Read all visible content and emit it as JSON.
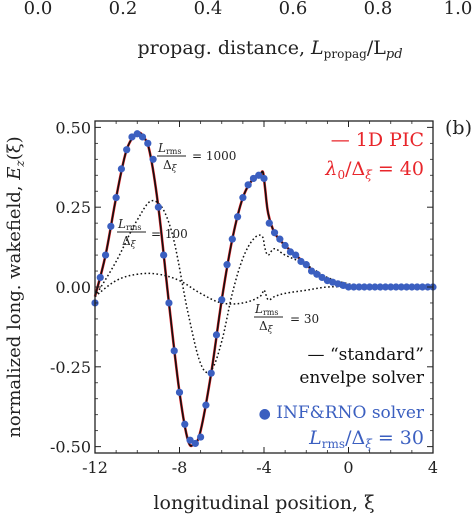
{
  "top_fragment": {
    "tick_labels": [
      "0.0",
      "0.2",
      "0.4",
      "0.6",
      "0.8",
      "1.0"
    ],
    "xlabel_text": "propag. distance, ",
    "xlabel_math": "L",
    "xlabel_sub": "propag",
    "xlabel_tail": "/L",
    "xlabel_sub2": "pd"
  },
  "chart_data": {
    "type": "line",
    "panel_label": "(b)",
    "xlabel": "longitudinal position, ξ",
    "ylabel": "normalized long. wakefield, E_z(ξ)",
    "ylabel_text": "normalized long. wakefield, ",
    "ylabel_math": "E",
    "ylabel_sub": "z",
    "ylabel_tail": "(ξ)",
    "xlim": [
      -12,
      4
    ],
    "ylim": [
      -0.52,
      0.52
    ],
    "xticks": [
      -12,
      -8,
      -4,
      0,
      4
    ],
    "xtick_labels": [
      "-12",
      "-8",
      "-4",
      "0",
      "4"
    ],
    "yticks": [
      -0.5,
      -0.25,
      0,
      0.25,
      0.5
    ],
    "ytick_labels": [
      "-0.50",
      "-0.25",
      "0.00",
      "0.25",
      "0.50"
    ],
    "grid": false,
    "colors": {
      "pic": "#e8262b",
      "standard": "#111111",
      "inf": "#3b5fc0",
      "text_red": "#e8262b",
      "text_blue": "#3b5fc0"
    },
    "series": [
      {
        "name": "1D PIC",
        "style": "solid-red",
        "x": [
          -12.0,
          -11.5,
          -11.0,
          -10.5,
          -10.0,
          -9.7,
          -9.4,
          -9.0,
          -8.5,
          -8.0,
          -7.6,
          -7.3,
          -7.0,
          -6.5,
          -6.0,
          -5.5,
          -5.0,
          -4.5,
          -4.2,
          -4.05,
          -3.95,
          -3.8,
          -3.5,
          -3.0,
          -2.5,
          -2.0,
          -1.5,
          -1.0,
          -0.5,
          0.0,
          0.5,
          1.0,
          2.0,
          3.0,
          4.0
        ],
        "y": [
          -0.03,
          0.1,
          0.28,
          0.43,
          0.48,
          0.47,
          0.42,
          0.25,
          -0.05,
          -0.33,
          -0.48,
          -0.49,
          -0.45,
          -0.27,
          -0.04,
          0.15,
          0.28,
          0.34,
          0.35,
          0.36,
          0.31,
          0.23,
          0.17,
          0.13,
          0.1,
          0.07,
          0.04,
          0.02,
          0.01,
          0.0,
          0.0,
          0.0,
          0.0,
          0.0,
          0.0
        ]
      },
      {
        "name": "L_rms/Δξ = 1000",
        "style": "solid-black",
        "x": [
          -12.0,
          -11.5,
          -11.0,
          -10.5,
          -10.0,
          -9.7,
          -9.4,
          -9.0,
          -8.5,
          -8.0,
          -7.6,
          -7.3,
          -7.0,
          -6.5,
          -6.0,
          -5.5,
          -5.0,
          -4.5,
          -4.2,
          -4.05,
          -3.95,
          -3.8,
          -3.5,
          -3.0,
          -2.5,
          -2.0,
          -1.5,
          -1.0,
          -0.5,
          0.0,
          0.5,
          1.0,
          2.0,
          3.0,
          4.0
        ],
        "y": [
          -0.03,
          0.1,
          0.28,
          0.43,
          0.48,
          0.47,
          0.42,
          0.25,
          -0.05,
          -0.33,
          -0.48,
          -0.49,
          -0.45,
          -0.27,
          -0.04,
          0.15,
          0.28,
          0.34,
          0.35,
          0.36,
          0.31,
          0.23,
          0.17,
          0.13,
          0.1,
          0.07,
          0.04,
          0.02,
          0.01,
          0.0,
          0.0,
          0.0,
          0.0,
          0.0,
          0.0
        ]
      },
      {
        "name": "L_rms/Δξ = 100",
        "style": "dotted-black",
        "x": [
          -12.0,
          -11.0,
          -10.0,
          -9.2,
          -8.4,
          -7.6,
          -7.0,
          -6.5,
          -6.0,
          -5.5,
          -5.0,
          -4.5,
          -4.1,
          -3.95,
          -3.8,
          -3.5,
          -3.0,
          -2.0,
          -1.0,
          0.0,
          1.0,
          4.0
        ],
        "y": [
          -0.03,
          0.08,
          0.21,
          0.27,
          0.18,
          -0.08,
          -0.24,
          -0.26,
          -0.17,
          -0.02,
          0.09,
          0.15,
          0.16,
          0.12,
          0.1,
          0.12,
          0.1,
          0.07,
          0.03,
          0.01,
          0.0,
          0.0
        ]
      },
      {
        "name": "L_rms/Δξ = 30",
        "style": "dotted-black",
        "x": [
          -12.0,
          -11.0,
          -10.0,
          -9.0,
          -8.0,
          -7.0,
          -6.0,
          -5.0,
          -4.2,
          -4.0,
          -3.8,
          -3.5,
          -3.0,
          -2.0,
          -1.0,
          0.0,
          1.0,
          4.0
        ],
        "y": [
          -0.03,
          0.02,
          0.04,
          0.04,
          0.02,
          -0.02,
          -0.05,
          -0.05,
          -0.03,
          -0.01,
          -0.04,
          -0.03,
          -0.02,
          -0.01,
          0.0,
          0.0,
          0.0,
          0.0
        ]
      },
      {
        "name": "INF&RNO solver, L_rms/Δξ = 30",
        "style": "dots-blue",
        "x": [
          -12.0,
          -11.75,
          -11.5,
          -11.25,
          -11.0,
          -10.75,
          -10.5,
          -10.25,
          -10.0,
          -9.75,
          -9.5,
          -9.25,
          -9.0,
          -8.75,
          -8.5,
          -8.25,
          -8.0,
          -7.75,
          -7.5,
          -7.25,
          -7.0,
          -6.75,
          -6.5,
          -6.25,
          -6.0,
          -5.75,
          -5.5,
          -5.25,
          -5.0,
          -4.75,
          -4.5,
          -4.25,
          -4.0,
          -3.75,
          -3.5,
          -3.25,
          -3.0,
          -2.75,
          -2.5,
          -2.25,
          -2.0,
          -1.75,
          -1.5,
          -1.25,
          -1.0,
          -0.75,
          -0.5,
          -0.25,
          0.0,
          0.25,
          0.5,
          0.75,
          1.0,
          1.25,
          1.5,
          1.75,
          2.0,
          2.25,
          2.5,
          2.75,
          3.0,
          3.25,
          3.5,
          3.75,
          4.0
        ],
        "y": [
          -0.05,
          0.03,
          0.1,
          0.19,
          0.28,
          0.37,
          0.43,
          0.47,
          0.48,
          0.47,
          0.45,
          0.4,
          0.25,
          0.1,
          -0.05,
          -0.2,
          -0.33,
          -0.43,
          -0.48,
          -0.49,
          -0.47,
          -0.37,
          -0.27,
          -0.15,
          -0.04,
          0.07,
          0.15,
          0.22,
          0.28,
          0.32,
          0.34,
          0.35,
          0.34,
          0.2,
          0.17,
          0.15,
          0.13,
          0.11,
          0.1,
          0.08,
          0.07,
          0.05,
          0.04,
          0.03,
          0.02,
          0.015,
          0.01,
          0.005,
          0.0,
          0.0,
          0.0,
          0.0,
          0.0,
          0.0,
          0.0,
          0.0,
          0.0,
          0.0,
          0.0,
          0.0,
          0.0,
          0.0,
          0.0,
          0.0,
          0.0
        ]
      }
    ],
    "annotations": {
      "ann_1000": {
        "num": "L",
        "num_sub": "rms",
        "den": "Δ",
        "den_sub": "ξ",
        "rhs": "= 1000"
      },
      "ann_100": {
        "num": "L",
        "num_sub": "rms",
        "den": "Δ",
        "den_sub": "ξ",
        "rhs": "= 100"
      },
      "ann_30": {
        "num": "L",
        "num_sub": "rms",
        "den": "Δ",
        "den_sub": "ξ",
        "rhs": "= 30"
      }
    },
    "legend": {
      "pic_label": "— 1D PIC",
      "pic_param": "λ",
      "pic_param_sub": "0",
      "pic_param_tail": "/Δ",
      "pic_param_sub2": "ξ",
      "pic_param_rhs": " = 40",
      "standard_line1": "— “standard”",
      "standard_line2": "envelpe solver",
      "inf_marker": "●",
      "inf_label": " INF&RNO solver",
      "inf_param": "L",
      "inf_param_sub": "rms",
      "inf_param_tail": "/Δ",
      "inf_param_sub2": "ξ",
      "inf_param_rhs": " = 30"
    }
  }
}
